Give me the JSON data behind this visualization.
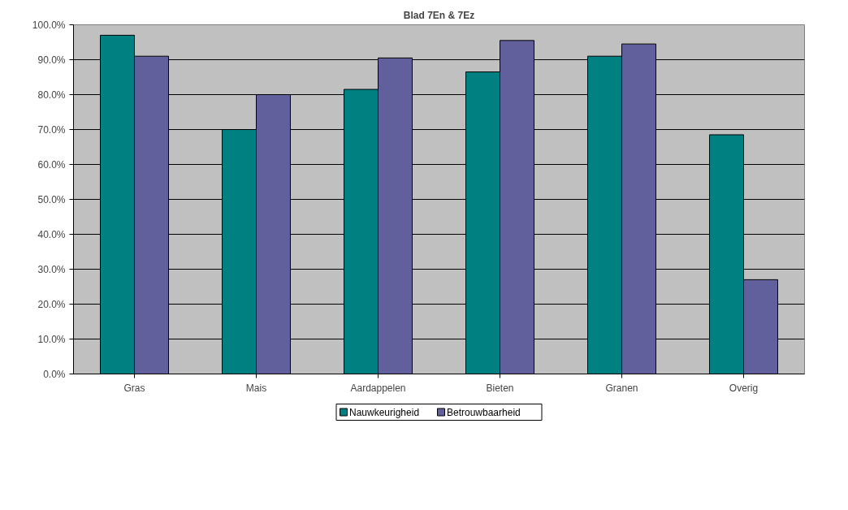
{
  "chart_data": {
    "type": "bar",
    "title": "Blad 7En & 7Ez",
    "categories": [
      "Gras",
      "Mais",
      "Aardappelen",
      "Bieten",
      "Granen",
      "Overig"
    ],
    "series": [
      {
        "name": "Nauwkeurigheid",
        "color": "#008080",
        "values": [
          97,
          70,
          81.5,
          86.5,
          91,
          68.5
        ]
      },
      {
        "name": "Betrouwbaarheid",
        "color": "#62609c",
        "values": [
          91,
          80,
          90.5,
          95.5,
          94.5,
          27
        ]
      }
    ],
    "ylim": [
      0,
      100
    ],
    "yticks": [
      {
        "value": 0,
        "label": "0.0%"
      },
      {
        "value": 10,
        "label": "10.0%"
      },
      {
        "value": 20,
        "label": "20.0%"
      },
      {
        "value": 30,
        "label": "30.0%"
      },
      {
        "value": 40,
        "label": "40.0%"
      },
      {
        "value": 50,
        "label": "50.0%"
      },
      {
        "value": 60,
        "label": "60.0%"
      },
      {
        "value": 70,
        "label": "70.0%"
      },
      {
        "value": 80,
        "label": "80.0%"
      },
      {
        "value": 90,
        "label": "90.0%"
      },
      {
        "value": 100,
        "label": "100.0%"
      }
    ],
    "grid": "y",
    "legend": "bottom"
  }
}
